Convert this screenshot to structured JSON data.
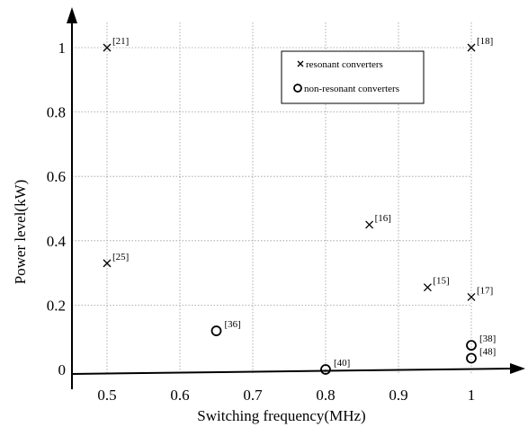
{
  "chart_data": {
    "type": "scatter",
    "title": "",
    "xlabel": "Switching frequency(MHz)",
    "ylabel": "Power level(kW)",
    "xlim": [
      0.45,
      1.0
    ],
    "ylim": [
      0.0,
      1.0
    ],
    "x_ticks": [
      0.5,
      0.6,
      0.7,
      0.8,
      0.9,
      1.0
    ],
    "x_tick_labels": [
      "0.5",
      "0.6",
      "0.7",
      "0.8",
      "0.9",
      "1"
    ],
    "y_ticks": [
      0.0,
      0.2,
      0.4,
      0.6,
      0.8,
      1.0
    ],
    "y_tick_labels": [
      "0",
      "0.2",
      "0.4",
      "0.6",
      "0.8",
      "1"
    ],
    "grid": true,
    "legend_position": "top-right",
    "series": [
      {
        "name": "resonant converters",
        "marker": "x",
        "points": [
          {
            "x": 0.5,
            "y": 1.0,
            "label": "[21]"
          },
          {
            "x": 1.0,
            "y": 1.0,
            "label": "[18]"
          },
          {
            "x": 0.86,
            "y": 0.45,
            "label": "[16]"
          },
          {
            "x": 0.5,
            "y": 0.33,
            "label": "[25]"
          },
          {
            "x": 0.94,
            "y": 0.255,
            "label": "[15]"
          },
          {
            "x": 1.0,
            "y": 0.225,
            "label": "[17]"
          }
        ]
      },
      {
        "name": "non-resonant converters",
        "marker": "o",
        "points": [
          {
            "x": 0.65,
            "y": 0.12,
            "label": "[36]"
          },
          {
            "x": 0.8,
            "y": 0.0,
            "label": "[40]"
          },
          {
            "x": 1.0,
            "y": 0.075,
            "label": "[38]"
          },
          {
            "x": 1.0,
            "y": 0.035,
            "label": "[48]"
          }
        ]
      }
    ]
  }
}
